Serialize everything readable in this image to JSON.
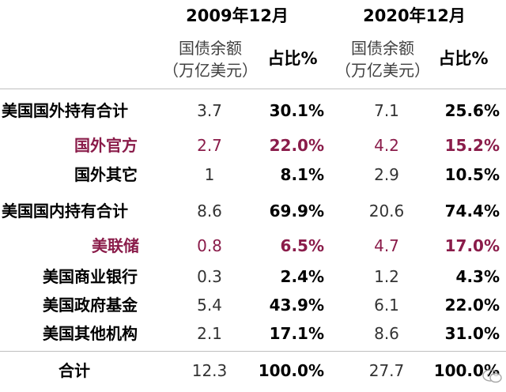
{
  "periods": [
    "2009年12月",
    "2020年12月"
  ],
  "headers": {
    "balance_line1": "国债余额",
    "balance_line2": "（万亿美元）",
    "share": "占比%"
  },
  "rows": [
    {
      "label": "美国国外持有合计",
      "v2009": "3.7",
      "p2009": "30.1%",
      "v2020": "7.1",
      "p2020": "25.6%",
      "highlight": false
    },
    {
      "label": "国外官方",
      "v2009": "2.7",
      "p2009": "22.0%",
      "v2020": "4.2",
      "p2020": "15.2%",
      "highlight": true
    },
    {
      "label": "国外其它",
      "v2009": "1",
      "p2009": "8.1%",
      "v2020": "2.9",
      "p2020": "10.5%",
      "highlight": false
    },
    {
      "label": "美国国内持有合计",
      "v2009": "8.6",
      "p2009": "69.9%",
      "v2020": "20.6",
      "p2020": "74.4%",
      "highlight": false
    },
    {
      "label": "美联储",
      "v2009": "0.8",
      "p2009": "6.5%",
      "v2020": "4.7",
      "p2020": "17.0%",
      "highlight": true
    },
    {
      "label": "美国商业银行",
      "v2009": "0.3",
      "p2009": "2.4%",
      "v2020": "1.2",
      "p2020": "4.3%",
      "highlight": false
    },
    {
      "label": "美国政府基金",
      "v2009": "5.4",
      "p2009": "43.9%",
      "v2020": "6.1",
      "p2020": "22.0%",
      "highlight": false
    },
    {
      "label": "美国其他机构",
      "v2009": "2.1",
      "p2009": "17.1%",
      "v2020": "8.6",
      "p2020": "31.0%",
      "highlight": false
    },
    {
      "label": "合计",
      "v2009": "12.3",
      "p2009": "100.0%",
      "v2020": "27.7",
      "p2020": "100.0%",
      "highlight": false
    }
  ],
  "colors": {
    "highlight": "#8a1c4a",
    "rule": "#bfbfbf"
  },
  "watermark_icon": "chat-bubble-icon"
}
